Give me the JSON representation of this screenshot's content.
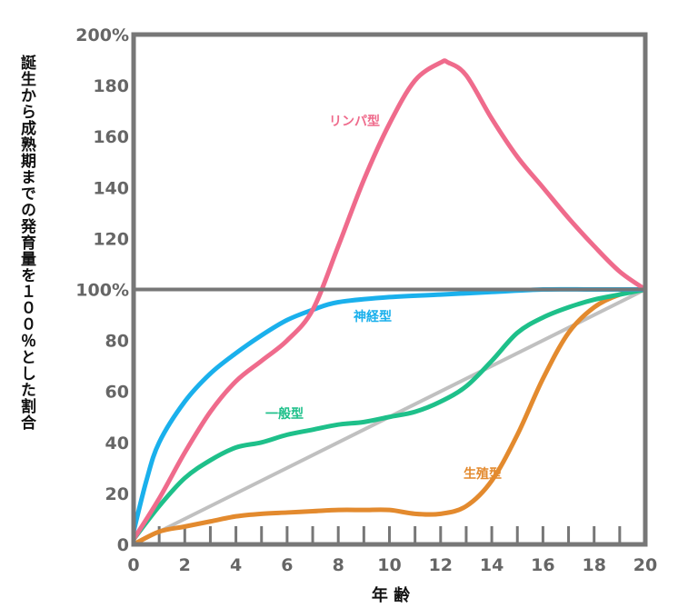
{
  "chart_data": {
    "type": "line",
    "title": "",
    "xlabel": "年 齢",
    "ylabel": "誕生から成熟期までの発育量を１００％とした割合",
    "xlim": [
      0,
      20
    ],
    "ylim": [
      0,
      200
    ],
    "x_ticks": [
      "0",
      "2",
      "4",
      "6",
      "8",
      "10",
      "12",
      "14",
      "16",
      "18",
      "20"
    ],
    "y_ticks": [
      "0",
      "20",
      "40",
      "60",
      "80",
      "100%",
      "120",
      "140",
      "160",
      "180",
      "200%"
    ],
    "grid": false,
    "series": [
      {
        "name": "リンパ型",
        "color": "#ef6b8c",
        "x": [
          0,
          1,
          2,
          3,
          4,
          5,
          6,
          7,
          8,
          9,
          10,
          11,
          12,
          12.3,
          13,
          14,
          15,
          16,
          17,
          18,
          19,
          20
        ],
        "y": [
          2,
          18,
          36,
          52,
          64,
          72,
          80,
          92,
          117,
          143,
          165,
          182,
          189,
          189,
          184,
          167,
          152,
          140,
          128,
          117,
          107,
          100
        ]
      },
      {
        "name": "神経型",
        "color": "#1ab0ec",
        "x": [
          0,
          0.5,
          1,
          2,
          3,
          4,
          5,
          6,
          7,
          8,
          10,
          12,
          14,
          16,
          18,
          20
        ],
        "y": [
          5,
          25,
          40,
          56,
          67,
          75,
          82,
          88,
          92,
          95,
          97,
          98,
          99,
          100,
          100,
          100
        ]
      },
      {
        "name": "一般型",
        "color": "#1ec08a",
        "x": [
          0,
          1,
          2,
          3,
          4,
          5,
          6,
          7,
          8,
          9,
          10,
          11,
          12,
          13,
          14,
          15,
          16,
          17,
          18,
          19,
          20
        ],
        "y": [
          2,
          15,
          26,
          33,
          38,
          40,
          43,
          45,
          47,
          48,
          50,
          52,
          56,
          62,
          72,
          83,
          89,
          93,
          96,
          98,
          100
        ]
      },
      {
        "name": "生殖型",
        "color": "#e38a2e",
        "x": [
          0,
          1,
          2,
          3,
          4,
          5,
          6,
          7,
          8,
          9,
          10,
          11,
          12,
          13,
          14,
          15,
          16,
          17,
          18,
          19,
          20
        ],
        "y": [
          0,
          5,
          7,
          9,
          11,
          12,
          12.5,
          13,
          13.5,
          13.5,
          13.5,
          12,
          12,
          15,
          25,
          43,
          65,
          83,
          93,
          98,
          100
        ]
      },
      {
        "name": "",
        "color": "#c0c0c0",
        "x": [
          0,
          20
        ],
        "y": [
          0,
          100
        ]
      }
    ]
  }
}
